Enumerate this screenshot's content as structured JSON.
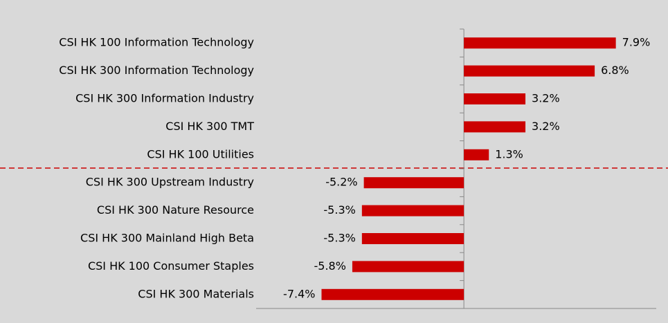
{
  "chart_data": {
    "type": "bar",
    "orientation": "horizontal",
    "categories": [
      "CSI HK 100 Information Technology",
      "CSI HK 300 Information Technology",
      "CSI HK 300 Information Industry",
      "CSI HK 300 TMT",
      "CSI HK 100 Utilities",
      "CSI HK 300 Upstream Industry",
      "CSI HK 300 Nature Resource",
      "CSI HK 300 Mainland High Beta",
      "CSI HK 100 Consumer Staples",
      "CSI HK 300 Materials"
    ],
    "values": [
      7.9,
      6.8,
      3.2,
      3.2,
      1.3,
      -5.2,
      -5.3,
      -5.3,
      -5.8,
      -7.4
    ],
    "value_labels": [
      "7.9%",
      "6.8%",
      "3.2%",
      "3.2%",
      "1.3%",
      "-5.2%",
      "-5.3%",
      "-5.3%",
      "-5.8%",
      "-7.4%"
    ],
    "color": "#cc0000",
    "xlim": [
      -10.8,
      10
    ]
  }
}
